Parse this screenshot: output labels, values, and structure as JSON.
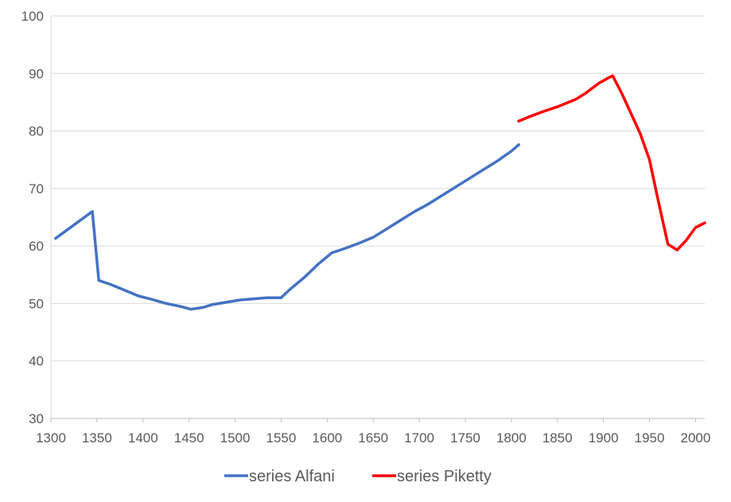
{
  "chart_data": {
    "type": "line",
    "title": "",
    "xlabel": "",
    "ylabel": "",
    "xlim": [
      1300,
      2010
    ],
    "ylim": [
      30,
      100
    ],
    "x_ticks": [
      "1300",
      "1350",
      "1400",
      "1450",
      "1500",
      "1550",
      "1600",
      "1650",
      "1700",
      "1750",
      "1800",
      "1850",
      "1900",
      "1950",
      "2000"
    ],
    "y_ticks": [
      "30",
      "40",
      "50",
      "60",
      "70",
      "80",
      "90",
      "100"
    ],
    "grid": true,
    "legend_position": "bottom",
    "series": [
      {
        "name": "series Alfani",
        "color": "#4472C4",
        "points": [
          [
            1305,
            61.3
          ],
          [
            1345,
            66.0
          ],
          [
            1352,
            54.0
          ],
          [
            1365,
            53.3
          ],
          [
            1380,
            52.3
          ],
          [
            1395,
            51.3
          ],
          [
            1410,
            50.7
          ],
          [
            1425,
            50.0
          ],
          [
            1440,
            49.5
          ],
          [
            1452,
            49.0
          ],
          [
            1465,
            49.3
          ],
          [
            1475,
            49.8
          ],
          [
            1490,
            50.2
          ],
          [
            1505,
            50.6
          ],
          [
            1520,
            50.8
          ],
          [
            1535,
            51.0
          ],
          [
            1550,
            51.0
          ],
          [
            1560,
            52.5
          ],
          [
            1575,
            54.5
          ],
          [
            1590,
            56.8
          ],
          [
            1605,
            58.8
          ],
          [
            1620,
            59.6
          ],
          [
            1635,
            60.5
          ],
          [
            1650,
            61.5
          ],
          [
            1665,
            63.0
          ],
          [
            1680,
            64.5
          ],
          [
            1695,
            66.0
          ],
          [
            1710,
            67.3
          ],
          [
            1725,
            68.8
          ],
          [
            1740,
            70.3
          ],
          [
            1755,
            71.8
          ],
          [
            1770,
            73.3
          ],
          [
            1785,
            74.8
          ],
          [
            1800,
            76.5
          ],
          [
            1808,
            77.6
          ]
        ]
      },
      {
        "name": "series Piketty",
        "color": "#FF0000",
        "points": [
          [
            1808,
            81.7
          ],
          [
            1820,
            82.5
          ],
          [
            1835,
            83.4
          ],
          [
            1850,
            84.2
          ],
          [
            1870,
            85.5
          ],
          [
            1880,
            86.5
          ],
          [
            1895,
            88.3
          ],
          [
            1905,
            89.2
          ],
          [
            1910,
            89.6
          ],
          [
            1920,
            86.5
          ],
          [
            1930,
            83.0
          ],
          [
            1940,
            79.5
          ],
          [
            1950,
            75.0
          ],
          [
            1960,
            67.5
          ],
          [
            1970,
            60.3
          ],
          [
            1980,
            59.3
          ],
          [
            1990,
            61.0
          ],
          [
            2000,
            63.2
          ],
          [
            2010,
            64.0
          ]
        ]
      }
    ]
  }
}
